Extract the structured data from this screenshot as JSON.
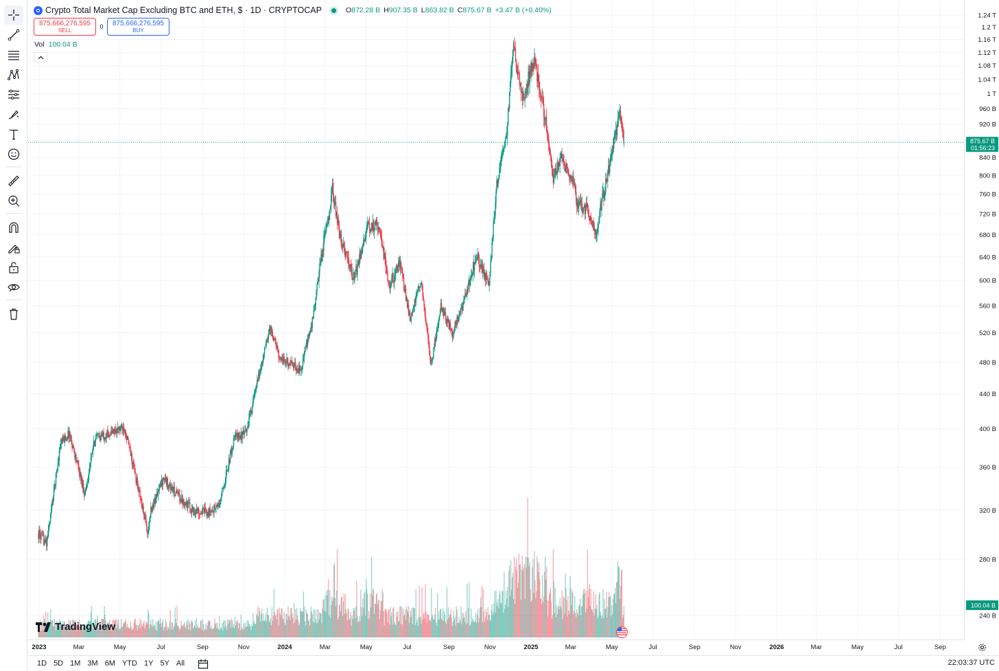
{
  "symbol": {
    "title": "Crypto Total Market Cap Excluding BTC and ETH, $ · 1D · CRYPTOCAP",
    "open_key": "O",
    "open": "872.28 B",
    "high_key": "H",
    "high": "907.35 B",
    "low_key": "L",
    "low": "863.82 B",
    "close_key": "C",
    "close": "875.67 B",
    "change": "+3.47 B (+0.40%)"
  },
  "trade": {
    "sell_price": "875,666,276,595",
    "sell_label": "SELL",
    "spread": "0",
    "buy_price": "875,666,276,595",
    "buy_label": "BUY"
  },
  "volume": {
    "label": "Vol",
    "value": "100.04 B"
  },
  "logo_text": "TradingView",
  "current_price_label": "875.67 B",
  "countdown": "01:56:23",
  "volume_tag": "100.04 B",
  "colors": {
    "up": "#089981",
    "down": "#f23645",
    "grid": "#f0f3fa",
    "accent": "#2962ff"
  },
  "toolbar_icons": [
    "crosshair-icon",
    "trend-line-icon",
    "horizontal-lines-icon",
    "pattern-icon",
    "fib-icon",
    "brush-icon",
    "text-icon",
    "emoji-icon",
    "ruler-icon",
    "zoom-in-icon",
    "magnet-icon",
    "lock-drawings-icon",
    "unlock-icon",
    "eye-icon",
    "trash-icon"
  ],
  "bottom_bar": {
    "ranges": [
      "1D",
      "5D",
      "1M",
      "3M",
      "6M",
      "YTD",
      "1Y",
      "5Y",
      "All"
    ],
    "clock": "22:03:37 UTC"
  },
  "chart_data": {
    "type": "candlestick",
    "y_scale": "log",
    "ylim": [
      225,
      1270
    ],
    "price_ticks": [
      "1.24 T",
      "1.2 T",
      "1.16 T",
      "1.12 T",
      "1.08 T",
      "1.04 T",
      "1 T",
      "960 B",
      "920 B",
      "880 B",
      "840 B",
      "800 B",
      "760 B",
      "720 B",
      "680 B",
      "640 B",
      "600 B",
      "560 B",
      "520 B",
      "480 B",
      "440 B",
      "400 B",
      "360 B",
      "320 B",
      "280 B",
      "240 B"
    ],
    "price_tick_values": [
      1240,
      1200,
      1160,
      1120,
      1080,
      1040,
      1000,
      960,
      920,
      880,
      840,
      800,
      760,
      720,
      680,
      640,
      600,
      560,
      520,
      480,
      440,
      400,
      360,
      320,
      280,
      240
    ],
    "time_ticks": [
      "2023",
      "Mar",
      "May",
      "Jul",
      "Sep",
      "Nov",
      "2024",
      "Mar",
      "May",
      "Jul",
      "Sep",
      "Nov",
      "2025",
      "Mar",
      "May",
      "Jul",
      "Sep",
      "Nov",
      "2026",
      "Mar",
      "May",
      "Jul",
      "Sep"
    ],
    "time_tick_dates": [
      "2023-01-01",
      "2023-03-01",
      "2023-05-01",
      "2023-07-01",
      "2023-09-01",
      "2023-11-01",
      "2024-01-01",
      "2024-03-01",
      "2024-05-01",
      "2024-07-01",
      "2024-09-01",
      "2024-11-01",
      "2025-01-01",
      "2025-03-01",
      "2025-05-01",
      "2025-07-01",
      "2025-09-01",
      "2025-11-01",
      "2026-01-01",
      "2026-03-01",
      "2026-05-01",
      "2026-07-01",
      "2026-09-01"
    ],
    "x_range": [
      "2022-12-26",
      "2026-10-06"
    ],
    "bold_time_ticks": [
      "2023",
      "2024",
      "2025",
      "2026"
    ],
    "path_dates": [
      "2022-12-31",
      "2023-01-12",
      "2023-02-02",
      "2023-02-15",
      "2023-03-10",
      "2023-03-25",
      "2023-04-16",
      "2023-05-08",
      "2023-06-12",
      "2023-06-16",
      "2023-07-05",
      "2023-07-16",
      "2023-08-18",
      "2023-09-10",
      "2023-09-26",
      "2023-10-18",
      "2023-11-04",
      "2023-12-10",
      "2023-12-25",
      "2024-01-24",
      "2024-02-10",
      "2024-02-27",
      "2024-03-12",
      "2024-03-22",
      "2024-04-13",
      "2024-05-01",
      "2024-05-20",
      "2024-06-04",
      "2024-06-20",
      "2024-07-05",
      "2024-07-22",
      "2024-08-05",
      "2024-08-20",
      "2024-09-06",
      "2024-09-22",
      "2024-10-12",
      "2024-10-30",
      "2024-11-11",
      "2024-11-26",
      "2024-12-06",
      "2024-12-19",
      "2025-01-06",
      "2025-01-24",
      "2025-02-03",
      "2025-02-14",
      "2025-03-03",
      "2025-03-11",
      "2025-03-25",
      "2025-04-07",
      "2025-04-14",
      "2025-04-27",
      "2025-05-12",
      "2025-05-19"
    ],
    "path_closes": [
      300,
      292,
      385,
      395,
      335,
      390,
      395,
      402,
      300,
      320,
      350,
      340,
      320,
      318,
      325,
      390,
      395,
      528,
      485,
      470,
      530,
      660,
      770,
      680,
      600,
      690,
      700,
      590,
      630,
      540,
      600,
      475,
      560,
      520,
      560,
      645,
      590,
      780,
      900,
      1140,
      985,
      1100,
      920,
      790,
      840,
      795,
      740,
      730,
      680,
      730,
      820,
      950,
      875.67
    ],
    "last_candle": {
      "open": 872.28,
      "high": 907.35,
      "low": 863.82,
      "close": 875.67
    },
    "volume_last": 100.04
  }
}
